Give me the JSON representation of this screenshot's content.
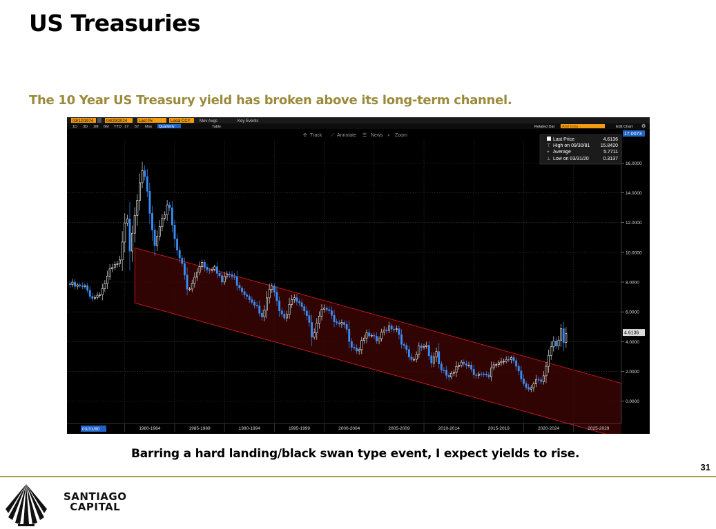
{
  "slide": {
    "title": "US Treasuries",
    "subtitle": "The 10 Year US Treasury yield has broken above its long-term channel.",
    "caption": "Barring a hard landing/black swan type event, I expect yields to rise.",
    "page_number": "31"
  },
  "brand": {
    "line1": "SANTIAGO",
    "line2": "CAPITAL"
  },
  "toolbar": {
    "start_date": "03/12/1974",
    "end_date": "04/29/2024",
    "price_field": "Last Px",
    "currency": "Local CCY",
    "mov_avgs": "Mov Avgs",
    "key_events": "Key Events",
    "periods": [
      "1D",
      "3D",
      "1M",
      "6M",
      "YTD",
      "1Y",
      "5Y",
      "Max"
    ],
    "frequency": "Quarterly",
    "table": "Table",
    "related_data": "Related Dat",
    "add_data": "Add Data",
    "edit_chart": "Edit Chart",
    "track": "Track",
    "annotate": "Annotate",
    "news": "News",
    "zoom": "Zoom"
  },
  "legend": {
    "last_price_label": "Last Price",
    "last_price_value": "4.6136",
    "high_label": "High on 09/30/81",
    "high_value": "15.8420",
    "average_label": "Average",
    "average_value": "5.7711",
    "low_label": "Low on 03/31/20",
    "low_value": "0.3137"
  },
  "badges": {
    "top_axis": "17.0073",
    "last": "4.6136",
    "cursor_date": "03/31/80"
  },
  "chart_data": {
    "type": "candlestick",
    "title": "",
    "x_ticks": [
      "1980-1984",
      "1985-1989",
      "1990-1994",
      "1995-1999",
      "2000-2004",
      "2005-2009",
      "2010-2014",
      "2015-2019",
      "2020-2024",
      "2025-2029"
    ],
    "y_ticks": [
      "16.0000",
      "14.0000",
      "12.0000",
      "10.0000",
      "8.0000",
      "6.0000",
      "4.0000",
      "2.0000",
      "0.0000"
    ],
    "ylim": [
      -1.5,
      17.5
    ],
    "xlim": [
      1974.2,
      2029.8
    ],
    "frequency": "Quarterly",
    "channel": {
      "upper": [
        [
          1981.0,
          10.3
        ],
        [
          2029.8,
          1.2
        ]
      ],
      "lower": [
        [
          1981.0,
          6.6
        ],
        [
          2029.8,
          -2.5
        ]
      ]
    },
    "anchors": [
      [
        1974.25,
        7.9
      ],
      [
        1975.0,
        7.7
      ],
      [
        1976.0,
        7.6
      ],
      [
        1976.9,
        6.9
      ],
      [
        1977.7,
        7.5
      ],
      [
        1978.6,
        8.8
      ],
      [
        1979.5,
        9.3
      ],
      [
        1980.2,
        12.8
      ],
      [
        1980.5,
        10.3
      ],
      [
        1981.0,
        12.6
      ],
      [
        1981.7,
        15.8
      ],
      [
        1982.2,
        14.2
      ],
      [
        1982.6,
        12.0
      ],
      [
        1983.0,
        10.4
      ],
      [
        1983.6,
        11.7
      ],
      [
        1984.4,
        13.6
      ],
      [
        1984.8,
        11.6
      ],
      [
        1985.3,
        10.2
      ],
      [
        1986.0,
        8.4
      ],
      [
        1986.3,
        7.2
      ],
      [
        1987.3,
        8.7
      ],
      [
        1987.7,
        9.5
      ],
      [
        1988.3,
        8.8
      ],
      [
        1989.0,
        9.2
      ],
      [
        1989.8,
        7.9
      ],
      [
        1990.3,
        8.6
      ],
      [
        1991.0,
        8.2
      ],
      [
        1992.0,
        7.3
      ],
      [
        1992.9,
        6.8
      ],
      [
        1993.8,
        5.4
      ],
      [
        1994.3,
        7.1
      ],
      [
        1994.9,
        7.8
      ],
      [
        1995.5,
        6.3
      ],
      [
        1996.1,
        5.6
      ],
      [
        1996.6,
        6.9
      ],
      [
        1997.4,
        6.6
      ],
      [
        1998.3,
        5.5
      ],
      [
        1998.8,
        4.4
      ],
      [
        1999.5,
        5.9
      ],
      [
        2000.1,
        6.6
      ],
      [
        2000.9,
        5.3
      ],
      [
        2001.5,
        5.0
      ],
      [
        2002.0,
        5.1
      ],
      [
        2002.7,
        3.9
      ],
      [
        2003.4,
        3.4
      ],
      [
        2003.9,
        4.4
      ],
      [
        2004.6,
        4.3
      ],
      [
        2005.3,
        4.0
      ],
      [
        2006.4,
        5.1
      ],
      [
        2007.3,
        4.9
      ],
      [
        2008.0,
        3.6
      ],
      [
        2008.9,
        2.4
      ],
      [
        2009.5,
        3.6
      ],
      [
        2010.3,
        3.8
      ],
      [
        2010.8,
        2.5
      ],
      [
        2011.2,
        3.5
      ],
      [
        2011.7,
        2.0
      ],
      [
        2012.5,
        1.6
      ],
      [
        2013.0,
        1.8
      ],
      [
        2013.8,
        2.8
      ],
      [
        2014.6,
        2.4
      ],
      [
        2015.1,
        1.9
      ],
      [
        2016.5,
        1.5
      ],
      [
        2016.9,
        2.4
      ],
      [
        2018.0,
        2.8
      ],
      [
        2018.8,
        3.1
      ],
      [
        2019.6,
        1.6
      ],
      [
        2020.2,
        0.7
      ],
      [
        2020.8,
        0.9
      ],
      [
        2021.3,
        1.6
      ],
      [
        2021.9,
        1.5
      ],
      [
        2022.4,
        3.0
      ],
      [
        2022.9,
        3.9
      ],
      [
        2023.3,
        3.5
      ],
      [
        2023.8,
        4.8
      ],
      [
        2024.0,
        3.9
      ],
      [
        2024.33,
        4.6136
      ]
    ]
  },
  "colors": {
    "up": "#ffffff",
    "down": "#3a8df5",
    "channel": "#d01a1a",
    "channel_fill": "#3a0505",
    "badge": "#1e63c8",
    "accent": "#f39c12"
  }
}
